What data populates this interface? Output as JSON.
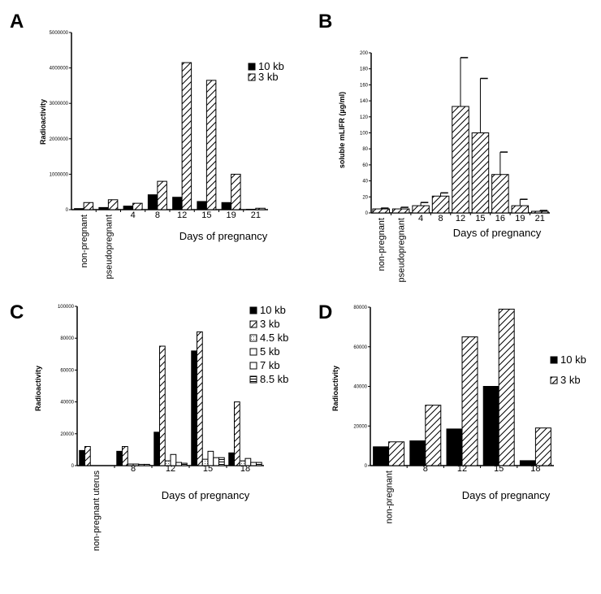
{
  "chart_data": [
    {
      "panel": "A",
      "type": "bar",
      "title": "",
      "xlabel": "Days of pregnancy",
      "ylabel": "Radioactivity",
      "ylim": [
        0,
        5000000
      ],
      "yticks": [
        0,
        1000000,
        2000000,
        3000000,
        4000000,
        5000000
      ],
      "ytick_labels": [
        "0",
        "1000000",
        "2000000",
        "3000000",
        "4000000",
        "5000000"
      ],
      "categories": [
        "non-pregnant",
        "pseudopregnant",
        "4",
        "8",
        "12",
        "15",
        "19",
        "21"
      ],
      "legend_position": "top-right",
      "series": [
        {
          "name": "10 kb",
          "fill": "solid",
          "values": [
            30000,
            60000,
            100000,
            420000,
            350000,
            230000,
            200000,
            10000
          ]
        },
        {
          "name": "3 kb",
          "fill": "hatch",
          "values": [
            200000,
            280000,
            180000,
            800000,
            4150000,
            3650000,
            1000000,
            40000
          ]
        }
      ]
    },
    {
      "panel": "B",
      "type": "bar",
      "title": "",
      "xlabel": "Days of pregnancy",
      "ylabel": "soluble mLIFR (µg/ml)",
      "ylim": [
        0,
        200
      ],
      "yticks": [
        0,
        20,
        40,
        60,
        80,
        100,
        120,
        140,
        160,
        180,
        200
      ],
      "ytick_labels": [
        "0",
        "20",
        "40",
        "60",
        "80",
        "100",
        "120",
        "140",
        "160",
        "180",
        "200"
      ],
      "categories": [
        "non-pregnant",
        "pseudopregnant",
        "4",
        "8",
        "12",
        "15",
        "16",
        "19",
        "21"
      ],
      "legend_position": "none",
      "series": [
        {
          "name": "soluble mLIFR",
          "fill": "hatch",
          "values": [
            5,
            5,
            9,
            21,
            133,
            100,
            48,
            9,
            2
          ],
          "error": [
            1,
            2,
            4,
            4,
            61,
            68,
            28,
            8,
            1
          ]
        }
      ]
    },
    {
      "panel": "C",
      "type": "bar",
      "title": "",
      "xlabel": "Days of pregnancy",
      "ylabel": "Radioactivity",
      "ylim": [
        0,
        100000
      ],
      "yticks": [
        0,
        20000,
        40000,
        60000,
        80000,
        100000
      ],
      "ytick_labels": [
        "0",
        "20000",
        "40000",
        "60000",
        "80000",
        "100000"
      ],
      "categories": [
        "non-pregnant uterus",
        "8",
        "12",
        "15",
        "18"
      ],
      "legend_position": "top-right",
      "series": [
        {
          "name": "10 kb",
          "fill": "solid",
          "values": [
            9500,
            9000,
            21000,
            72000,
            8000
          ]
        },
        {
          "name": "3 kb",
          "fill": "hatch",
          "values": [
            12000,
            12000,
            75000,
            84000,
            40000
          ]
        },
        {
          "name": "4.5 kb",
          "fill": "dotted",
          "values": [
            0,
            1000,
            3000,
            4000,
            3000
          ]
        },
        {
          "name": "5 kb",
          "fill": "open",
          "values": [
            0,
            1000,
            7000,
            9000,
            4500
          ]
        },
        {
          "name": "7 kb",
          "fill": "open",
          "values": [
            0,
            800,
            2000,
            5000,
            2000
          ]
        },
        {
          "name": "8.5 kb",
          "fill": "lined",
          "values": [
            0,
            800,
            1500,
            5000,
            2000
          ]
        }
      ]
    },
    {
      "panel": "D",
      "type": "bar",
      "title": "",
      "xlabel": "Days of pregnancy",
      "ylabel": "Radioactivity",
      "ylim": [
        0,
        80000
      ],
      "yticks": [
        0,
        20000,
        40000,
        60000,
        80000
      ],
      "ytick_labels": [
        "0",
        "20000",
        "40000",
        "60000",
        "80000"
      ],
      "categories": [
        "non-pregnant",
        "8",
        "12",
        "15",
        "18"
      ],
      "legend_position": "right",
      "series": [
        {
          "name": "10 kb",
          "fill": "solid",
          "values": [
            9500,
            12500,
            18500,
            40000,
            2500
          ]
        },
        {
          "name": "3 kb",
          "fill": "hatch",
          "values": [
            12000,
            30500,
            65000,
            79000,
            19000
          ]
        }
      ]
    }
  ]
}
